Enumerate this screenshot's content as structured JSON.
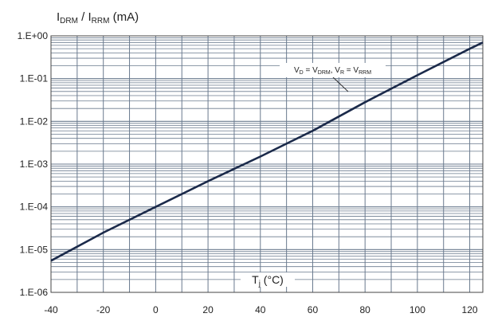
{
  "chart_data": {
    "type": "line",
    "title": "",
    "ylabel": {
      "main_prefix": "I",
      "sub1": "DRM",
      "sep": " / I",
      "sub2": "RRM",
      "unit": " (mA)"
    },
    "xlabel": {
      "main": "T",
      "sub": "j",
      "unit": " (°C)"
    },
    "annotation": {
      "parts": [
        {
          "t": "V",
          "sub": false
        },
        {
          "t": "D",
          "sub": true
        },
        {
          "t": " = V",
          "sub": false
        },
        {
          "t": "DRM",
          "sub": true
        },
        {
          "t": ", V",
          "sub": false
        },
        {
          "t": "R",
          "sub": true
        },
        {
          "t": " = V",
          "sub": false
        },
        {
          "t": "RRM",
          "sub": true
        }
      ]
    },
    "y_scale": "log",
    "ylim": [
      1e-06,
      1
    ],
    "xlim": [
      -40,
      125
    ],
    "y_tick_labels": [
      "1.E+00",
      "1.E-01",
      "1.E-02",
      "1.E-03",
      "1.E-04",
      "1.E-05",
      "1.E-06"
    ],
    "x_tick_labels": [
      "-40",
      "-20",
      "0",
      "20",
      "40",
      "60",
      "80",
      "100",
      "120"
    ],
    "grid": true,
    "series": [
      {
        "x": [
          -40,
          -20,
          0,
          20,
          40,
          60,
          80,
          100,
          120,
          125
        ],
        "y": [
          5.5e-06,
          2.5e-05,
          0.0001,
          0.0004,
          0.0015,
          0.006,
          0.028,
          0.12,
          0.5,
          0.7
        ]
      }
    ]
  },
  "colors": {
    "curve": "#1b2a4a",
    "grid": "#6a7a8e",
    "axis": "#444444",
    "text": "#222222"
  }
}
